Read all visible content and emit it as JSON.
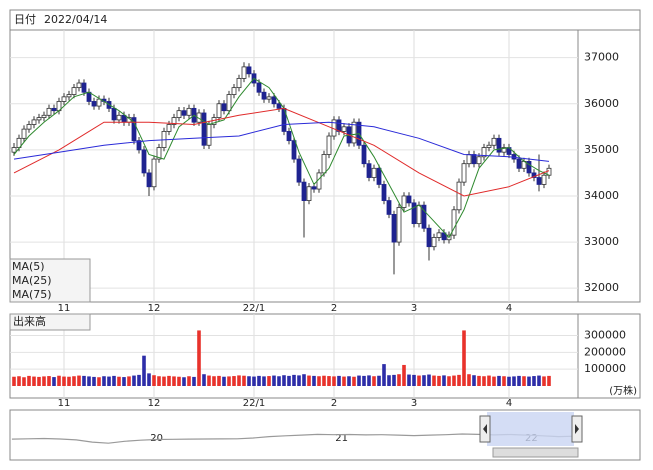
{
  "header": {
    "label": "日付",
    "date": "2022/04/14"
  },
  "chart_data": [
    {
      "type": "candlestick",
      "up_color": "#ffffff",
      "down_color": "#1f2390",
      "edge_color": "#333333",
      "grid": true,
      "xlim": [
        -0.8,
        112.8
      ],
      "ylim": [
        31700,
        37600
      ],
      "yticks": [
        32000,
        33000,
        34000,
        35000,
        36000,
        37000
      ],
      "xticks": [
        {
          "value": 10,
          "label": "11"
        },
        {
          "value": 28,
          "label": "12"
        },
        {
          "value": 48,
          "label": "22/1"
        },
        {
          "value": 64,
          "label": "2"
        },
        {
          "value": 80,
          "label": "3"
        },
        {
          "value": 99,
          "label": "4"
        }
      ],
      "candles": [
        [
          34950,
          35150,
          34870,
          35050
        ],
        [
          35050,
          35330,
          34970,
          35250
        ],
        [
          35250,
          35530,
          35170,
          35450
        ],
        [
          35450,
          35630,
          35370,
          35550
        ],
        [
          35550,
          35730,
          35470,
          35650
        ],
        [
          35650,
          35780,
          35570,
          35700
        ],
        [
          35700,
          35830,
          35620,
          35750
        ],
        [
          35750,
          35980,
          35670,
          35900
        ],
        [
          35900,
          35980,
          35770,
          35850
        ],
        [
          35850,
          36130,
          35770,
          36050
        ],
        [
          36050,
          36230,
          35970,
          36150
        ],
        [
          36150,
          36280,
          36070,
          36200
        ],
        [
          36200,
          36430,
          36120,
          36350
        ],
        [
          36350,
          36530,
          36270,
          36450
        ],
        [
          36450,
          36530,
          36170,
          36250
        ],
        [
          36250,
          36330,
          35970,
          36050
        ],
        [
          36050,
          36130,
          35870,
          35950
        ],
        [
          35950,
          36180,
          35870,
          36100
        ],
        [
          36100,
          36180,
          35970,
          36050
        ],
        [
          36050,
          36130,
          35820,
          35900
        ],
        [
          35900,
          35980,
          35570,
          35650
        ],
        [
          35650,
          35830,
          35570,
          35750
        ],
        [
          35750,
          35830,
          35520,
          35600
        ],
        [
          35600,
          35780,
          35520,
          35700
        ],
        [
          35700,
          35780,
          35120,
          35200
        ],
        [
          35200,
          35280,
          34920,
          35000
        ],
        [
          35000,
          35080,
          34420,
          34500
        ],
        [
          34500,
          34580,
          34000,
          34200
        ],
        [
          34200,
          34880,
          34120,
          34800
        ],
        [
          34800,
          35130,
          34720,
          35050
        ],
        [
          35050,
          35480,
          34970,
          35400
        ],
        [
          35400,
          35630,
          35320,
          35550
        ],
        [
          35550,
          35780,
          35470,
          35700
        ],
        [
          35700,
          35930,
          35620,
          35850
        ],
        [
          35850,
          35930,
          35670,
          35750
        ],
        [
          35750,
          35980,
          35670,
          35900
        ],
        [
          35900,
          35980,
          35520,
          35600
        ],
        [
          35600,
          35880,
          35520,
          35800
        ],
        [
          35800,
          35880,
          35020,
          35100
        ],
        [
          35100,
          35630,
          35020,
          35550
        ],
        [
          35550,
          35780,
          35470,
          35700
        ],
        [
          35700,
          36080,
          35620,
          36000
        ],
        [
          36000,
          36080,
          35770,
          35850
        ],
        [
          35850,
          36280,
          35770,
          36200
        ],
        [
          36200,
          36430,
          36120,
          36350
        ],
        [
          36350,
          36630,
          36270,
          36550
        ],
        [
          36550,
          36900,
          36470,
          36800
        ],
        [
          36800,
          36880,
          36570,
          36650
        ],
        [
          36650,
          36730,
          36370,
          36450
        ],
        [
          36450,
          36530,
          36170,
          36250
        ],
        [
          36250,
          36330,
          36020,
          36100
        ],
        [
          36100,
          36230,
          36020,
          36150
        ],
        [
          36150,
          36230,
          35920,
          36000
        ],
        [
          36000,
          36080,
          35820,
          35900
        ],
        [
          35900,
          35980,
          35320,
          35400
        ],
        [
          35400,
          35480,
          35120,
          35200
        ],
        [
          35200,
          35280,
          34720,
          34800
        ],
        [
          34800,
          34880,
          34220,
          34300
        ],
        [
          34300,
          34380,
          33100,
          33900
        ],
        [
          33900,
          34280,
          33820,
          34200
        ],
        [
          34200,
          34280,
          34070,
          34150
        ],
        [
          34150,
          34580,
          34070,
          34500
        ],
        [
          34500,
          34980,
          34420,
          34900
        ],
        [
          34900,
          35380,
          34820,
          35300
        ],
        [
          35300,
          35730,
          35220,
          35650
        ],
        [
          35650,
          35730,
          35320,
          35400
        ],
        [
          35400,
          35580,
          35320,
          35500
        ],
        [
          35500,
          35580,
          35070,
          35150
        ],
        [
          35150,
          35680,
          35070,
          35600
        ],
        [
          35600,
          35680,
          35020,
          35100
        ],
        [
          35100,
          35180,
          34620,
          34700
        ],
        [
          34700,
          34780,
          34320,
          34400
        ],
        [
          34400,
          34680,
          34320,
          34600
        ],
        [
          34600,
          34680,
          34170,
          34250
        ],
        [
          34250,
          34330,
          33820,
          33900
        ],
        [
          33900,
          33980,
          33520,
          33600
        ],
        [
          33600,
          33680,
          32300,
          33000
        ],
        [
          33000,
          33830,
          32920,
          33750
        ],
        [
          33750,
          34080,
          33670,
          34000
        ],
        [
          34000,
          34080,
          33770,
          33850
        ],
        [
          33850,
          33930,
          33320,
          33400
        ],
        [
          33400,
          33880,
          33320,
          33800
        ],
        [
          33800,
          33880,
          33220,
          33300
        ],
        [
          33300,
          33380,
          32600,
          32900
        ],
        [
          32900,
          33180,
          32820,
          33100
        ],
        [
          33100,
          33280,
          33020,
          33200
        ],
        [
          33200,
          33280,
          32970,
          33050
        ],
        [
          33050,
          33230,
          32970,
          33150
        ],
        [
          33150,
          33780,
          33070,
          33700
        ],
        [
          33700,
          34380,
          33620,
          34300
        ],
        [
          34300,
          34780,
          34220,
          34700
        ],
        [
          34700,
          34980,
          34620,
          34900
        ],
        [
          34900,
          34980,
          34620,
          34700
        ],
        [
          34700,
          34930,
          34620,
          34850
        ],
        [
          34850,
          35130,
          34770,
          35050
        ],
        [
          35050,
          35180,
          34970,
          35100
        ],
        [
          35100,
          35330,
          35020,
          35250
        ],
        [
          35250,
          35330,
          34870,
          34950
        ],
        [
          34950,
          35130,
          34870,
          35050
        ],
        [
          35050,
          35130,
          34820,
          34900
        ],
        [
          34900,
          34980,
          34720,
          34800
        ],
        [
          34800,
          34880,
          34520,
          34600
        ],
        [
          34600,
          34830,
          34520,
          34750
        ],
        [
          34750,
          34830,
          34420,
          34500
        ],
        [
          34500,
          34580,
          34320,
          34400
        ],
        [
          34400,
          34900,
          34100,
          34250
        ],
        [
          34250,
          34530,
          34170,
          34450
        ],
        [
          34450,
          34680,
          34370,
          34600
        ]
      ],
      "series": [
        {
          "name": "MA(5)",
          "color": "#2f8a2f",
          "x": [
            0,
            3,
            6,
            9,
            12,
            15,
            18,
            21,
            24,
            27,
            30,
            33,
            36,
            39,
            42,
            45,
            48,
            51,
            54,
            57,
            60,
            63,
            66,
            69,
            72,
            75,
            78,
            81,
            84,
            87,
            90,
            93,
            96,
            99,
            102,
            105,
            107
          ],
          "values": [
            34900,
            35300,
            35600,
            35850,
            36150,
            36250,
            36050,
            35850,
            35600,
            34900,
            34800,
            35500,
            35750,
            35550,
            35650,
            36150,
            36550,
            36350,
            35900,
            34950,
            34250,
            34600,
            35300,
            35350,
            34850,
            34250,
            33650,
            33800,
            33450,
            33100,
            33700,
            34600,
            35000,
            35050,
            34750,
            34550,
            34450
          ]
        },
        {
          "name": "MA(25)",
          "color": "#e02a2a",
          "x": [
            0,
            9,
            18,
            27,
            36,
            45,
            54,
            63,
            72,
            81,
            90,
            99,
            107
          ],
          "values": [
            34500,
            35000,
            35600,
            35600,
            35550,
            35750,
            35900,
            35500,
            35100,
            34500,
            34000,
            34200,
            34550
          ]
        },
        {
          "name": "MA(75)",
          "color": "#2a2ad8",
          "x": [
            0,
            9,
            18,
            27,
            36,
            45,
            54,
            63,
            72,
            81,
            90,
            99,
            107
          ],
          "values": [
            34800,
            34950,
            35100,
            35200,
            35250,
            35300,
            35550,
            35600,
            35500,
            35250,
            34900,
            34850,
            34750
          ]
        }
      ]
    },
    {
      "type": "bar",
      "title": "出来高",
      "unit": "(万株)",
      "up_color": "#e8322b",
      "down_color": "#2d2da8",
      "grid": true,
      "xlim": [
        -0.8,
        112.8
      ],
      "ylim": [
        0,
        380000
      ],
      "yticks": [
        100000,
        200000,
        300000
      ],
      "xticks": [
        {
          "value": 10,
          "label": "11"
        },
        {
          "value": 28,
          "label": "12"
        },
        {
          "value": 48,
          "label": "22/1"
        },
        {
          "value": 64,
          "label": "2"
        },
        {
          "value": 80,
          "label": "3"
        },
        {
          "value": 99,
          "label": "4"
        }
      ],
      "values": [
        55000,
        58000,
        52000,
        60000,
        56000,
        54000,
        57000,
        59000,
        53000,
        61000,
        56000,
        55000,
        58000,
        62000,
        60000,
        57000,
        54000,
        52000,
        58000,
        56000,
        60000,
        55000,
        53000,
        57000,
        62000,
        66000,
        180000,
        75000,
        64000,
        58000,
        56000,
        60000,
        57000,
        55000,
        52000,
        58000,
        54000,
        330000,
        70000,
        62000,
        58000,
        60000,
        55000,
        57000,
        59000,
        63000,
        61000,
        58000,
        56000,
        60000,
        57000,
        59000,
        62000,
        58000,
        64000,
        60000,
        66000,
        63000,
        70000,
        62000,
        60000,
        58000,
        61000,
        59000,
        57000,
        60000,
        56000,
        58000,
        55000,
        62000,
        60000,
        63000,
        58000,
        61000,
        130000,
        64000,
        66000,
        70000,
        125000,
        68000,
        66000,
        62000,
        64000,
        68000,
        62000,
        60000,
        63000,
        58000,
        62000,
        66000,
        330000,
        70000,
        64000,
        60000,
        58000,
        62000,
        56000,
        60000,
        58000,
        55000,
        57000,
        60000,
        58000,
        56000,
        59000,
        62000,
        57000,
        60000
      ]
    },
    {
      "type": "line",
      "color": "#9a9a9a",
      "xlim": [
        -0.12,
        35.2
      ],
      "ylim": [
        0,
        60000
      ],
      "xticks": [
        {
          "value": 9,
          "label": "20"
        },
        {
          "value": 20.5,
          "label": "21"
        },
        {
          "value": 32.3,
          "label": "22"
        }
      ],
      "values": [
        23000,
        23500,
        23800,
        23200,
        22000,
        19000,
        17500,
        20000,
        21500,
        22500,
        22800,
        23000,
        23200,
        23300,
        23500,
        24500,
        26500,
        27500,
        28500,
        29500,
        29000,
        29300,
        28800,
        29000,
        28500,
        27800,
        28500,
        29000,
        30000,
        29500,
        28800,
        29300,
        28500,
        27500,
        26500,
        27000
      ]
    }
  ]
}
